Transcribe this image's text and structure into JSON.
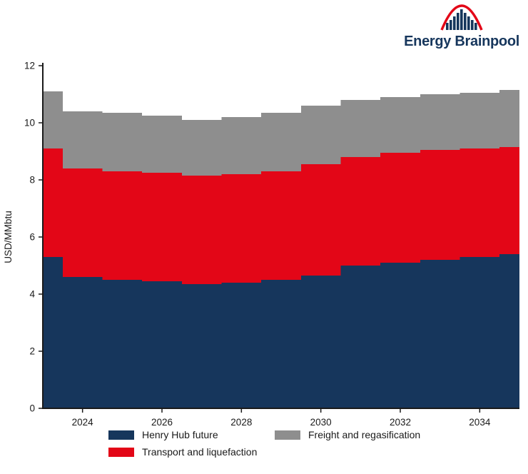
{
  "logo": {
    "text": "Energy Brainpool",
    "icon": "bar-chart-with-red-arc-icon",
    "brand_navy": "#16365c",
    "brand_red": "#e30617"
  },
  "chart_data": {
    "type": "area",
    "stacked": true,
    "step": true,
    "title": "",
    "xlabel": "",
    "ylabel": "USD/MMbtu",
    "xlim": [
      2023,
      2035
    ],
    "ylim": [
      0,
      12
    ],
    "x": [
      2023,
      2024,
      2025,
      2026,
      2027,
      2028,
      2029,
      2030,
      2031,
      2032,
      2033,
      2034,
      2035
    ],
    "xticks": [
      2024,
      2026,
      2028,
      2030,
      2032,
      2034
    ],
    "yticks": [
      0,
      2,
      4,
      6,
      8,
      10,
      12
    ],
    "grid": false,
    "legend_position": "bottom",
    "series": [
      {
        "name": "Henry Hub future",
        "color": "#16365c",
        "values": [
          5.3,
          4.6,
          4.5,
          4.45,
          4.35,
          4.4,
          4.5,
          4.65,
          5.0,
          5.1,
          5.2,
          5.3,
          5.4
        ]
      },
      {
        "name": "Transport and liquefaction",
        "color": "#e30617",
        "values": [
          3.8,
          3.8,
          3.8,
          3.8,
          3.8,
          3.8,
          3.8,
          3.9,
          3.8,
          3.85,
          3.85,
          3.8,
          3.75
        ]
      },
      {
        "name": "Freight and regasification",
        "color": "#8e8e8e",
        "values": [
          2.0,
          2.0,
          2.05,
          2.0,
          1.95,
          2.0,
          2.05,
          2.05,
          2.0,
          1.95,
          1.95,
          1.95,
          2.0
        ]
      }
    ]
  }
}
